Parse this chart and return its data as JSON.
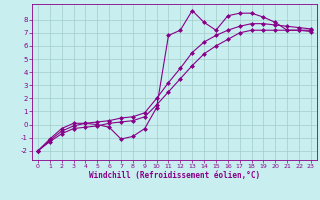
{
  "xlabel": "Windchill (Refroidissement éolien,°C)",
  "background_color": "#c8eef0",
  "grid_color": "#a0cec8",
  "line_color": "#880088",
  "xlim": [
    -0.5,
    23.5
  ],
  "ylim": [
    -2.7,
    9.2
  ],
  "xticks": [
    0,
    1,
    2,
    3,
    4,
    5,
    6,
    7,
    8,
    9,
    10,
    11,
    12,
    13,
    14,
    15,
    16,
    17,
    18,
    19,
    20,
    21,
    22,
    23
  ],
  "yticks": [
    -2,
    -1,
    0,
    1,
    2,
    3,
    4,
    5,
    6,
    7,
    8
  ],
  "line1_x": [
    0,
    1,
    2,
    3,
    4,
    5,
    6,
    7,
    8,
    9,
    10,
    11,
    12,
    13,
    14,
    15,
    16,
    17,
    18,
    19,
    20,
    21,
    22,
    23
  ],
  "line1_y": [
    -2.0,
    -1.3,
    -0.7,
    -0.3,
    -0.2,
    -0.1,
    0.1,
    0.2,
    0.3,
    0.6,
    1.5,
    2.5,
    3.5,
    4.5,
    5.4,
    6.0,
    6.5,
    7.0,
    7.2,
    7.2,
    7.2,
    7.2,
    7.2,
    7.2
  ],
  "line2_x": [
    0,
    1,
    2,
    3,
    4,
    5,
    6,
    7,
    8,
    9,
    10,
    11,
    12,
    13,
    14,
    15,
    16,
    17,
    18,
    19,
    20,
    21,
    22,
    23
  ],
  "line2_y": [
    -2.0,
    -1.2,
    -0.5,
    -0.1,
    0.1,
    0.2,
    0.3,
    0.5,
    0.6,
    0.9,
    2.0,
    3.2,
    4.3,
    5.5,
    6.3,
    6.8,
    7.2,
    7.5,
    7.7,
    7.7,
    7.6,
    7.5,
    7.4,
    7.3
  ],
  "line3_x": [
    0,
    1,
    2,
    3,
    4,
    5,
    6,
    7,
    8,
    9,
    10,
    11,
    12,
    13,
    14,
    15,
    16,
    17,
    18,
    19,
    20,
    21,
    22,
    23
  ],
  "line3_y": [
    -2.0,
    -1.1,
    -0.3,
    0.1,
    0.1,
    0.0,
    -0.2,
    -1.1,
    -0.9,
    -0.3,
    1.3,
    6.8,
    7.2,
    8.7,
    7.8,
    7.2,
    8.3,
    8.5,
    8.5,
    8.2,
    7.8,
    7.2,
    7.2,
    7.1
  ],
  "marker_size": 2.5,
  "linewidth": 0.8
}
